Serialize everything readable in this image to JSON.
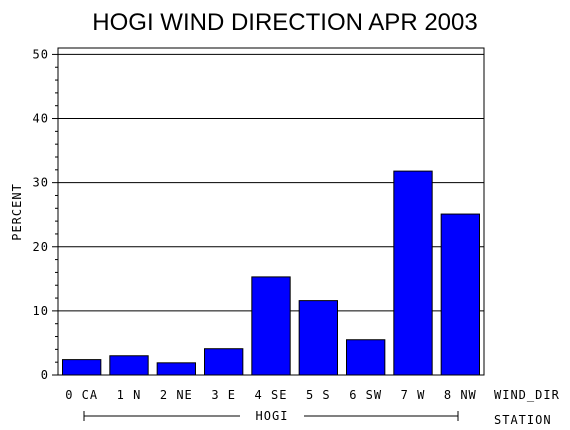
{
  "chart_data": {
    "type": "bar",
    "title": "HOGI WIND DIRECTION APR 2003",
    "ylabel": "PERCENT",
    "xlabel": "WIND_DIR",
    "group_axis_label": "STATION",
    "group_label": "HOGI",
    "categories": [
      "0 CA",
      "1 N",
      "2 NE",
      "3 E",
      "4 SE",
      "5 S",
      "6 SW",
      "7 W",
      "8 NW"
    ],
    "values": [
      2.4,
      3.0,
      1.9,
      4.1,
      15.3,
      11.6,
      5.5,
      31.8,
      25.1
    ],
    "ylim": [
      0,
      51
    ],
    "yticks": [
      0,
      10,
      20,
      30,
      40,
      50
    ],
    "grid": true,
    "bar_color": "#0000ff"
  }
}
